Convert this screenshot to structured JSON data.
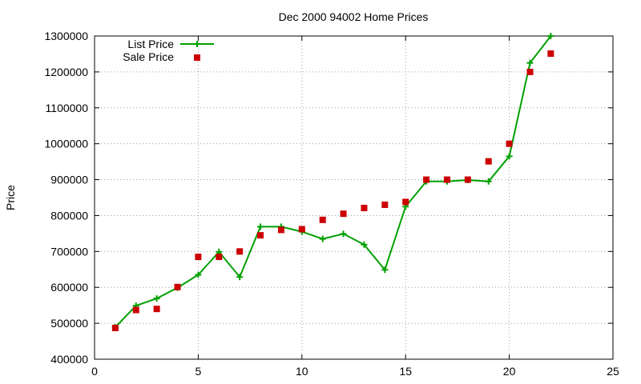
{
  "chart_data": {
    "type": "line",
    "title": "Dec 2000 94002 Home Prices",
    "xlabel": "",
    "ylabel": "Price",
    "xlim": [
      0,
      25
    ],
    "ylim": [
      400000,
      1300000
    ],
    "xticks": [
      "0",
      "5",
      "10",
      "15",
      "20",
      "25"
    ],
    "yticks": [
      "400000",
      "500000",
      "600000",
      "700000",
      "800000",
      "900000",
      "1000000",
      "1100000",
      "1200000",
      "1300000"
    ],
    "grid": true,
    "legend_position": "top-left",
    "series": [
      {
        "name": "List Price",
        "style": "line+cross",
        "color": "#00a000",
        "points": [
          [
            1,
            489000
          ],
          [
            2,
            549000
          ],
          [
            3,
            569000
          ],
          [
            4,
            599000
          ],
          [
            5,
            635000
          ],
          [
            6,
            699000
          ],
          [
            7,
            629000
          ],
          [
            8,
            769000
          ],
          [
            9,
            769000
          ],
          [
            10,
            755000
          ],
          [
            11,
            735000
          ],
          [
            12,
            749000
          ],
          [
            13,
            719000
          ],
          [
            14,
            649000
          ],
          [
            15,
            825000
          ],
          [
            16,
            895000
          ],
          [
            17,
            895000
          ],
          [
            18,
            899000
          ],
          [
            19,
            895000
          ],
          [
            20,
            965000
          ],
          [
            21,
            1225000
          ],
          [
            22,
            1300000
          ]
        ]
      },
      {
        "name": "Sale Price",
        "style": "square",
        "color": "#cc0000",
        "points": [
          [
            1,
            487000
          ],
          [
            2,
            537000
          ],
          [
            3,
            540000
          ],
          [
            4,
            601000
          ],
          [
            5,
            685000
          ],
          [
            6,
            685000
          ],
          [
            7,
            700000
          ],
          [
            8,
            745000
          ],
          [
            9,
            760000
          ],
          [
            10,
            762000
          ],
          [
            11,
            788000
          ],
          [
            12,
            805000
          ],
          [
            13,
            821000
          ],
          [
            14,
            830000
          ],
          [
            15,
            838000
          ],
          [
            16,
            900000
          ],
          [
            17,
            900000
          ],
          [
            18,
            900000
          ],
          [
            19,
            951000
          ],
          [
            20,
            1000000
          ],
          [
            21,
            1200000
          ],
          [
            22,
            1251000
          ]
        ]
      }
    ]
  }
}
